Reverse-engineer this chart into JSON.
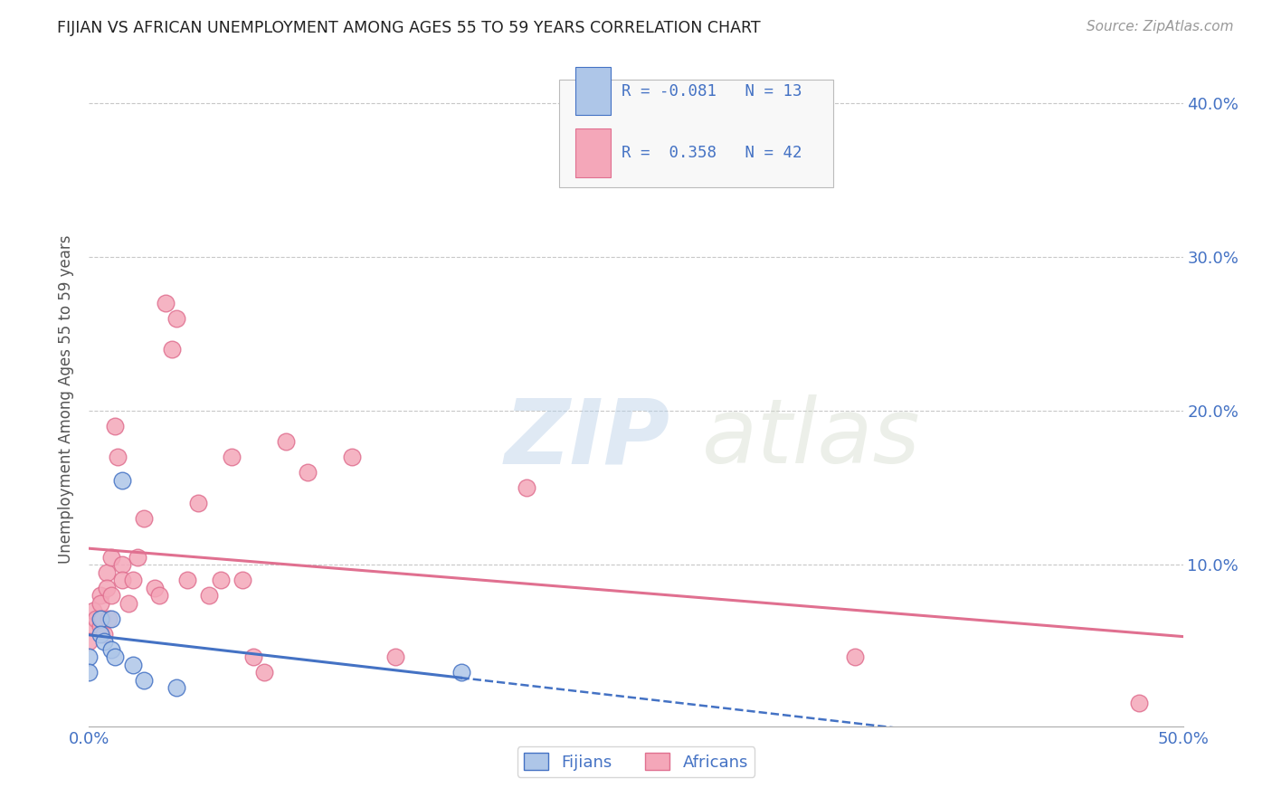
{
  "title": "FIJIAN VS AFRICAN UNEMPLOYMENT AMONG AGES 55 TO 59 YEARS CORRELATION CHART",
  "source": "Source: ZipAtlas.com",
  "ylabel": "Unemployment Among Ages 55 to 59 years",
  "xlim": [
    0.0,
    0.5
  ],
  "ylim": [
    -0.005,
    0.42
  ],
  "xticks": [
    0.0,
    0.1,
    0.2,
    0.3,
    0.4,
    0.5
  ],
  "yticks": [
    0.0,
    0.1,
    0.2,
    0.3,
    0.4
  ],
  "ytick_right_labels": [
    "",
    "10.0%",
    "20.0%",
    "30.0%",
    "40.0%"
  ],
  "xtick_labels": [
    "0.0%",
    "",
    "",
    "",
    "",
    "50.0%"
  ],
  "fijian_color": "#aec6e8",
  "african_color": "#f4a7b9",
  "fijian_line_color": "#4472c4",
  "african_line_color": "#e07090",
  "fijian_R": -0.081,
  "fijian_N": 13,
  "african_R": 0.358,
  "african_N": 42,
  "fijian_x": [
    0.0,
    0.0,
    0.005,
    0.005,
    0.007,
    0.01,
    0.01,
    0.012,
    0.015,
    0.02,
    0.025,
    0.04,
    0.17
  ],
  "fijian_y": [
    0.04,
    0.03,
    0.065,
    0.055,
    0.05,
    0.065,
    0.045,
    0.04,
    0.155,
    0.035,
    0.025,
    0.02,
    0.03
  ],
  "african_x": [
    0.0,
    0.0,
    0.002,
    0.003,
    0.005,
    0.005,
    0.005,
    0.006,
    0.007,
    0.008,
    0.008,
    0.009,
    0.01,
    0.01,
    0.012,
    0.013,
    0.015,
    0.015,
    0.018,
    0.02,
    0.022,
    0.025,
    0.03,
    0.032,
    0.035,
    0.038,
    0.04,
    0.045,
    0.05,
    0.055,
    0.06,
    0.065,
    0.07,
    0.075,
    0.08,
    0.09,
    0.1,
    0.12,
    0.14,
    0.2,
    0.35,
    0.48
  ],
  "african_y": [
    0.06,
    0.05,
    0.07,
    0.065,
    0.08,
    0.075,
    0.06,
    0.065,
    0.055,
    0.095,
    0.085,
    0.065,
    0.105,
    0.08,
    0.19,
    0.17,
    0.1,
    0.09,
    0.075,
    0.09,
    0.105,
    0.13,
    0.085,
    0.08,
    0.27,
    0.24,
    0.26,
    0.09,
    0.14,
    0.08,
    0.09,
    0.17,
    0.09,
    0.04,
    0.03,
    0.18,
    0.16,
    0.17,
    0.04,
    0.15,
    0.04,
    0.01
  ],
  "watermark_zip": "ZIP",
  "watermark_atlas": "atlas",
  "background_color": "#ffffff",
  "grid_color": "#c8c8c8",
  "title_color": "#222222",
  "axis_label_color": "#555555",
  "tick_color": "#4472c4",
  "source_color": "#999999",
  "legend_fijians": "Fijians",
  "legend_africans": "Africans"
}
